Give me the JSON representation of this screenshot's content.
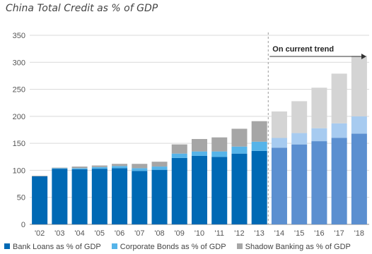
{
  "chart_data": {
    "type": "bar",
    "stacked": true,
    "title": "China Total Credit as % of GDP",
    "categories": [
      "'02",
      "'03",
      "'04",
      "'05",
      "'06",
      "'07",
      "'08",
      "'09",
      "'10",
      "'11",
      "'12",
      "'13",
      "'14",
      "'15",
      "'16",
      "'17",
      "'18"
    ],
    "series": [
      {
        "name": "Bank Loans as % of GDP",
        "color": "#0069b4",
        "projected_color": "#5b8fd0",
        "values": [
          89,
          103,
          102,
          103,
          104,
          99,
          101,
          123,
          127,
          125,
          131,
          136,
          142,
          148,
          154,
          160,
          168
        ]
      },
      {
        "name": "Corporate Bonds as % of GDP",
        "color": "#56b4e9",
        "projected_color": "#a7cbf0",
        "values": [
          0,
          1,
          2,
          3,
          4,
          5,
          6,
          8,
          8,
          10,
          13,
          17,
          18,
          21,
          24,
          27,
          32
        ]
      },
      {
        "name": "Shadow Banking as % of GDP",
        "color": "#a6a6a6",
        "projected_color": "#d4d4d4",
        "values": [
          1,
          1,
          3,
          3,
          4,
          8,
          9,
          17,
          23,
          26,
          33,
          38,
          49,
          59,
          75,
          92,
          112
        ]
      }
    ],
    "projection_start_index": 12,
    "ylim": [
      0,
      350
    ],
    "yticks": [
      0,
      50,
      100,
      150,
      200,
      250,
      300,
      350
    ],
    "grid": true,
    "legend_position": "bottom",
    "annotation": "On current trend"
  }
}
